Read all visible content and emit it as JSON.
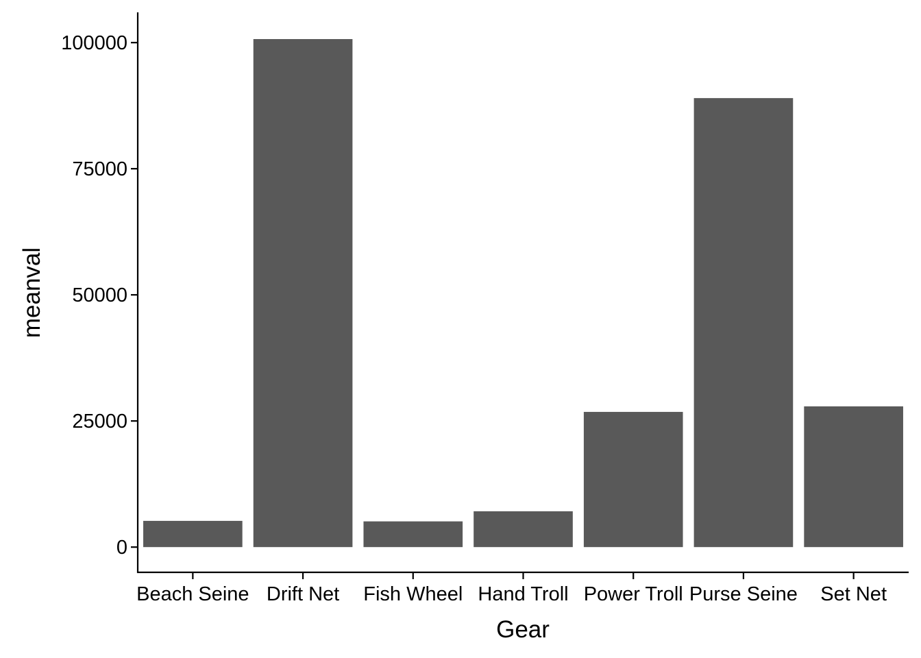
{
  "chart_data": {
    "type": "bar",
    "title": "",
    "xlabel": "Gear",
    "ylabel": "meanval",
    "categories": [
      "Beach Seine",
      "Drift Net",
      "Fish Wheel",
      "Hand Troll",
      "Power Troll",
      "Purse Seine",
      "Set Net"
    ],
    "values": [
      5200,
      100700,
      5100,
      7100,
      26800,
      89000,
      27900
    ],
    "ylim": [
      -5000,
      106000
    ],
    "yticks": [
      0,
      25000,
      50000,
      75000,
      100000
    ],
    "ytick_labels": [
      "0",
      "25000",
      "50000",
      "75000",
      "100000"
    ],
    "grid": false,
    "legend": "none",
    "bar_color": "#595959"
  }
}
